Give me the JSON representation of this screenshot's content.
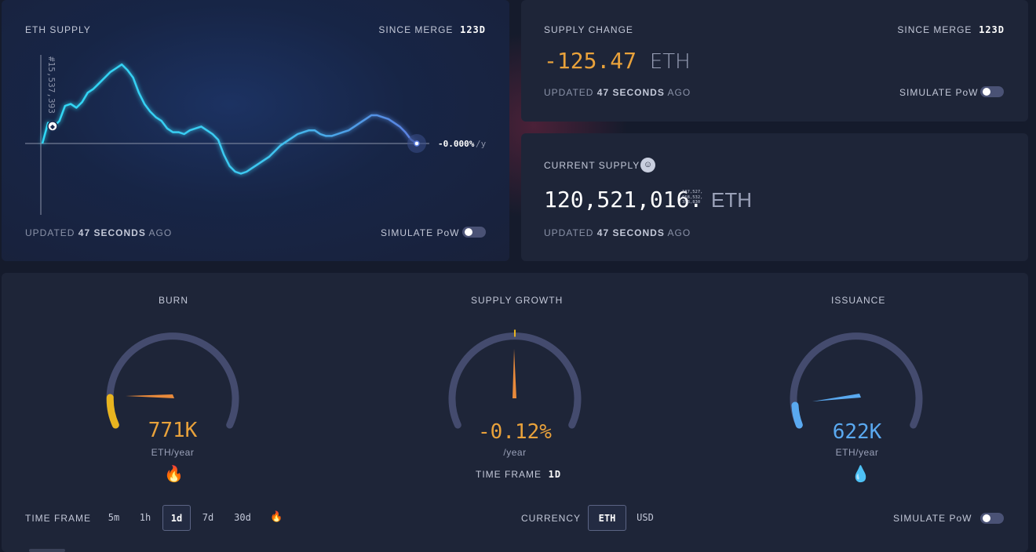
{
  "eth_supply": {
    "title": "ETH SUPPLY",
    "since_label": "SINCE MERGE",
    "since_value": "123d",
    "block_label": "#15,537,393",
    "rate_label": "-0.000%",
    "rate_unit": "/y",
    "updated_prefix": "UPDATED",
    "updated_value": "47 SECONDS",
    "updated_suffix": "AGO",
    "simulate_label": "SIMULATE PoW",
    "simulate_on": false
  },
  "supply_change": {
    "title": "SUPPLY CHANGE",
    "since_label": "SINCE MERGE",
    "since_value": "123d",
    "value": "-125.47",
    "unit": "ETH",
    "updated_prefix": "UPDATED",
    "updated_value": "47 SECONDS",
    "updated_suffix": "AGO",
    "simulate_label": "SIMULATE PoW",
    "simulate_on": false,
    "value_color": "#e9a23b"
  },
  "current_supply": {
    "title": "CURRENT SUPPLY",
    "icon": "nerd-face-icon",
    "value": "120,521,016.",
    "decimals_line1": "187,527,",
    "decimals_line2": "668,532,",
    "decimals_line3": "358,830",
    "unit": "ETH",
    "updated_prefix": "UPDATED",
    "updated_value": "47 SECONDS",
    "updated_suffix": "AGO"
  },
  "gauges": {
    "burn": {
      "title": "BURN",
      "value": "771K",
      "unit": "ETH/year",
      "icon": "fire-icon",
      "color": "#e9a23b",
      "level": 0.18
    },
    "supply_growth": {
      "title": "SUPPLY GROWTH",
      "value": "-0.12%",
      "unit": "/year",
      "timeframe_label": "TIME FRAME",
      "timeframe_value": "1d",
      "color": "#e9a23b",
      "level": 0.5
    },
    "issuance": {
      "title": "ISSUANCE",
      "value": "622K",
      "unit": "ETH/year",
      "icon": "droplet-icon",
      "color": "#5aa9f0",
      "level": 0.15
    }
  },
  "controls": {
    "timeframe_label": "TIME FRAME",
    "timeframes": [
      "5m",
      "1h",
      "1d",
      "7d",
      "30d"
    ],
    "active_timeframe": "1d",
    "currency_label": "CURRENCY",
    "currencies": [
      "ETH",
      "USD"
    ],
    "active_currency": "ETH",
    "simulate_label": "SIMULATE PoW"
  },
  "chart_data": {
    "type": "line",
    "series": [
      {
        "values": [
          0,
          0.55,
          0.45,
          0.6,
          1.0,
          1.05,
          0.95,
          1.1,
          1.35,
          1.45,
          1.6,
          1.75,
          1.9,
          2.0,
          2.1,
          1.95,
          1.75,
          1.35,
          1.05,
          0.85,
          0.7,
          0.6,
          0.4,
          0.3,
          0.3,
          0.25,
          0.35,
          0.4,
          0.45,
          0.35,
          0.25,
          0.1,
          -0.3,
          -0.6,
          -0.75,
          -0.8,
          -0.75,
          -0.65,
          -0.55,
          -0.45,
          -0.35,
          -0.2,
          -0.05,
          0.05,
          0.15,
          0.25,
          0.3,
          0.35,
          0.35,
          0.25,
          0.2,
          0.2,
          0.25,
          0.3,
          0.35,
          0.45,
          0.55,
          0.65,
          0.75,
          0.75,
          0.7,
          0.65,
          0.55,
          0.45,
          0.3,
          0.1,
          0
        ]
      }
    ],
    "grid": false
  }
}
